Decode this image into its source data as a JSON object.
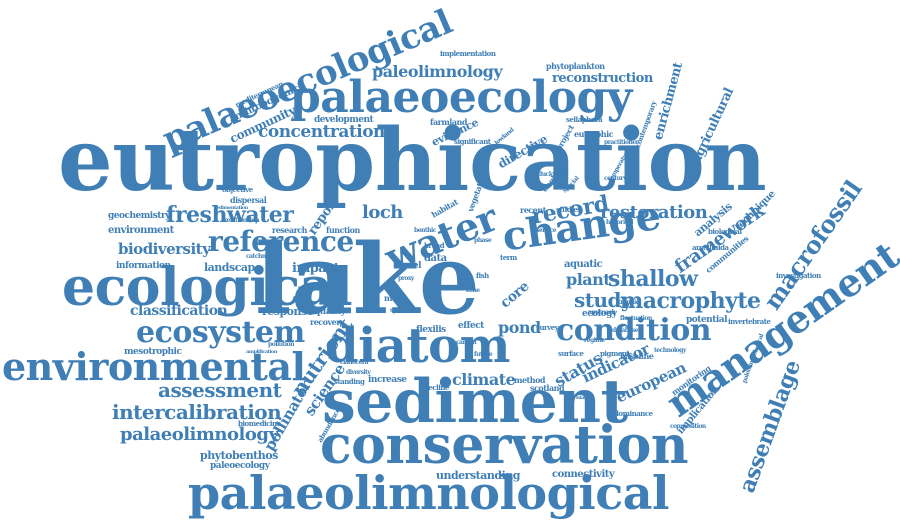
{
  "word_color": "#3f7fb5",
  "background": "#ffffff",
  "words": {
    "eutrophication": "eutrophication",
    "lake": "lake",
    "sediment": "sediment",
    "conservation": "conservation",
    "palaeolimnological": "palaeolimnological",
    "palaeoecology": "palaeoecology",
    "palaeoecological": "palaeoecological",
    "ecological": "ecological",
    "environmental": "environmental",
    "diatom": "diatom",
    "change": "change",
    "water": "water",
    "management": "management",
    "macrofossil": "macrofossil",
    "ecosystem": "ecosystem",
    "reference": "reference",
    "freshwater": "freshwater",
    "condition": "condition",
    "macrophyte": "macrophyte",
    "assemblage": "assemblage",
    "assessment": "assessment",
    "intercalibration": "intercalibration",
    "palaeolimnology": "palaeolimnology",
    "paleolimnology": "paleolimnology",
    "reconstruction": "reconstruction",
    "concentration": "concentration",
    "biodiversity": "biodiversity",
    "classification": "classification",
    "restoration": "restoration",
    "framework": "framework",
    "shallow": "shallow",
    "plant": "plant",
    "study": "study",
    "record": "record",
    "loch": "loch",
    "nutrient": "nutrient",
    "science": "science",
    "pollinator": "pollinator",
    "climate": "climate",
    "pond": "pond",
    "status": "status",
    "indicator": "indicator",
    "european": "european",
    "implication": "implication",
    "enrichment": "enrichment",
    "agricultural": "agricultural",
    "understanding": "understanding",
    "connectivity": "connectivity",
    "phytobenthos": "phytobenthos",
    "paleoecology": "paleoecology",
    "biomedicine": "biomedicine",
    "mesotrophic": "mesotrophic",
    "environment": "environment",
    "geochemistry": "geochemistry",
    "information": "information",
    "landscape": "landscape",
    "impact": "impact",
    "response": "response",
    "quality": "quality",
    "recovery": "recovery",
    "function": "function",
    "research": "research",
    "report": "report",
    "community": "community",
    "anthropogenic": "anthropogenic",
    "mediterranean": "mediterranean",
    "development": "development",
    "evidence": "evidence",
    "directive": "directive",
    "significant": "significant",
    "farmland": "farmland",
    "england": "england",
    "project": "project",
    "eutrophic": "eutrophic",
    "sellaphora": "sellaphora",
    "phytoplankton": "phytoplankton",
    "implementation": "implementation",
    "aquatic": "aquatic",
    "data": "data",
    "effect": "effect",
    "flexilis": "flexilis",
    "ecology": "ecology",
    "analysis": "analysis",
    "technique": "technique",
    "communities": "communities",
    "biological": "biological",
    "arcellinida": "arcellinida",
    "investigation": "investigation",
    "potential": "potential",
    "invertebrate": "invertebrate",
    "baseline": "baseline",
    "monitoring": "monitoring",
    "method": "method",
    "scotland": "scotland",
    "increase": "increase",
    "standing": "standing",
    "decline": "decline",
    "core": "core",
    "pigment": "pigment",
    "surface": "surface",
    "technology": "technology",
    "dominance": "dominance",
    "composition": "composition",
    "paleolimnological": "paleolimnological",
    "contemporary": "contemporary",
    "recent": "recent",
    "studies": "studies",
    "habitat": "habitat",
    "vegetation": "vegetation",
    "level": "level",
    "more": "more",
    "abundance": "abundance",
    "cladocera": "cladocera",
    "diversity": "diversity",
    "survey": "survey",
    "broad": "broad",
    "benthic": "benthic",
    "dispersal": "dispersal",
    "objective": "objective",
    "relationship": "relationship",
    "catchment": "catchment",
    "reservoir": "reservoir",
    "temperature": "temperature",
    "practitioner": "practitioner",
    "duckweed": "duckweed",
    "historical": "historical",
    "trophic": "trophic",
    "century": "century",
    "fluctuation": "fluctuation",
    "approach": "approach",
    "database": "database",
    "carbon": "carbon",
    "future": "future",
    "fish": "fish",
    "phase": "phase",
    "term": "term",
    "service": "service",
    "special": "special",
    "system": "system",
    "sedimentation": "sedimentation",
    "pollution": "pollution",
    "amplification": "amplification",
    "proxy": "proxy",
    "zone": "zone",
    "lowland": "lowland",
    "regime": "regime",
    "island": "island"
  }
}
